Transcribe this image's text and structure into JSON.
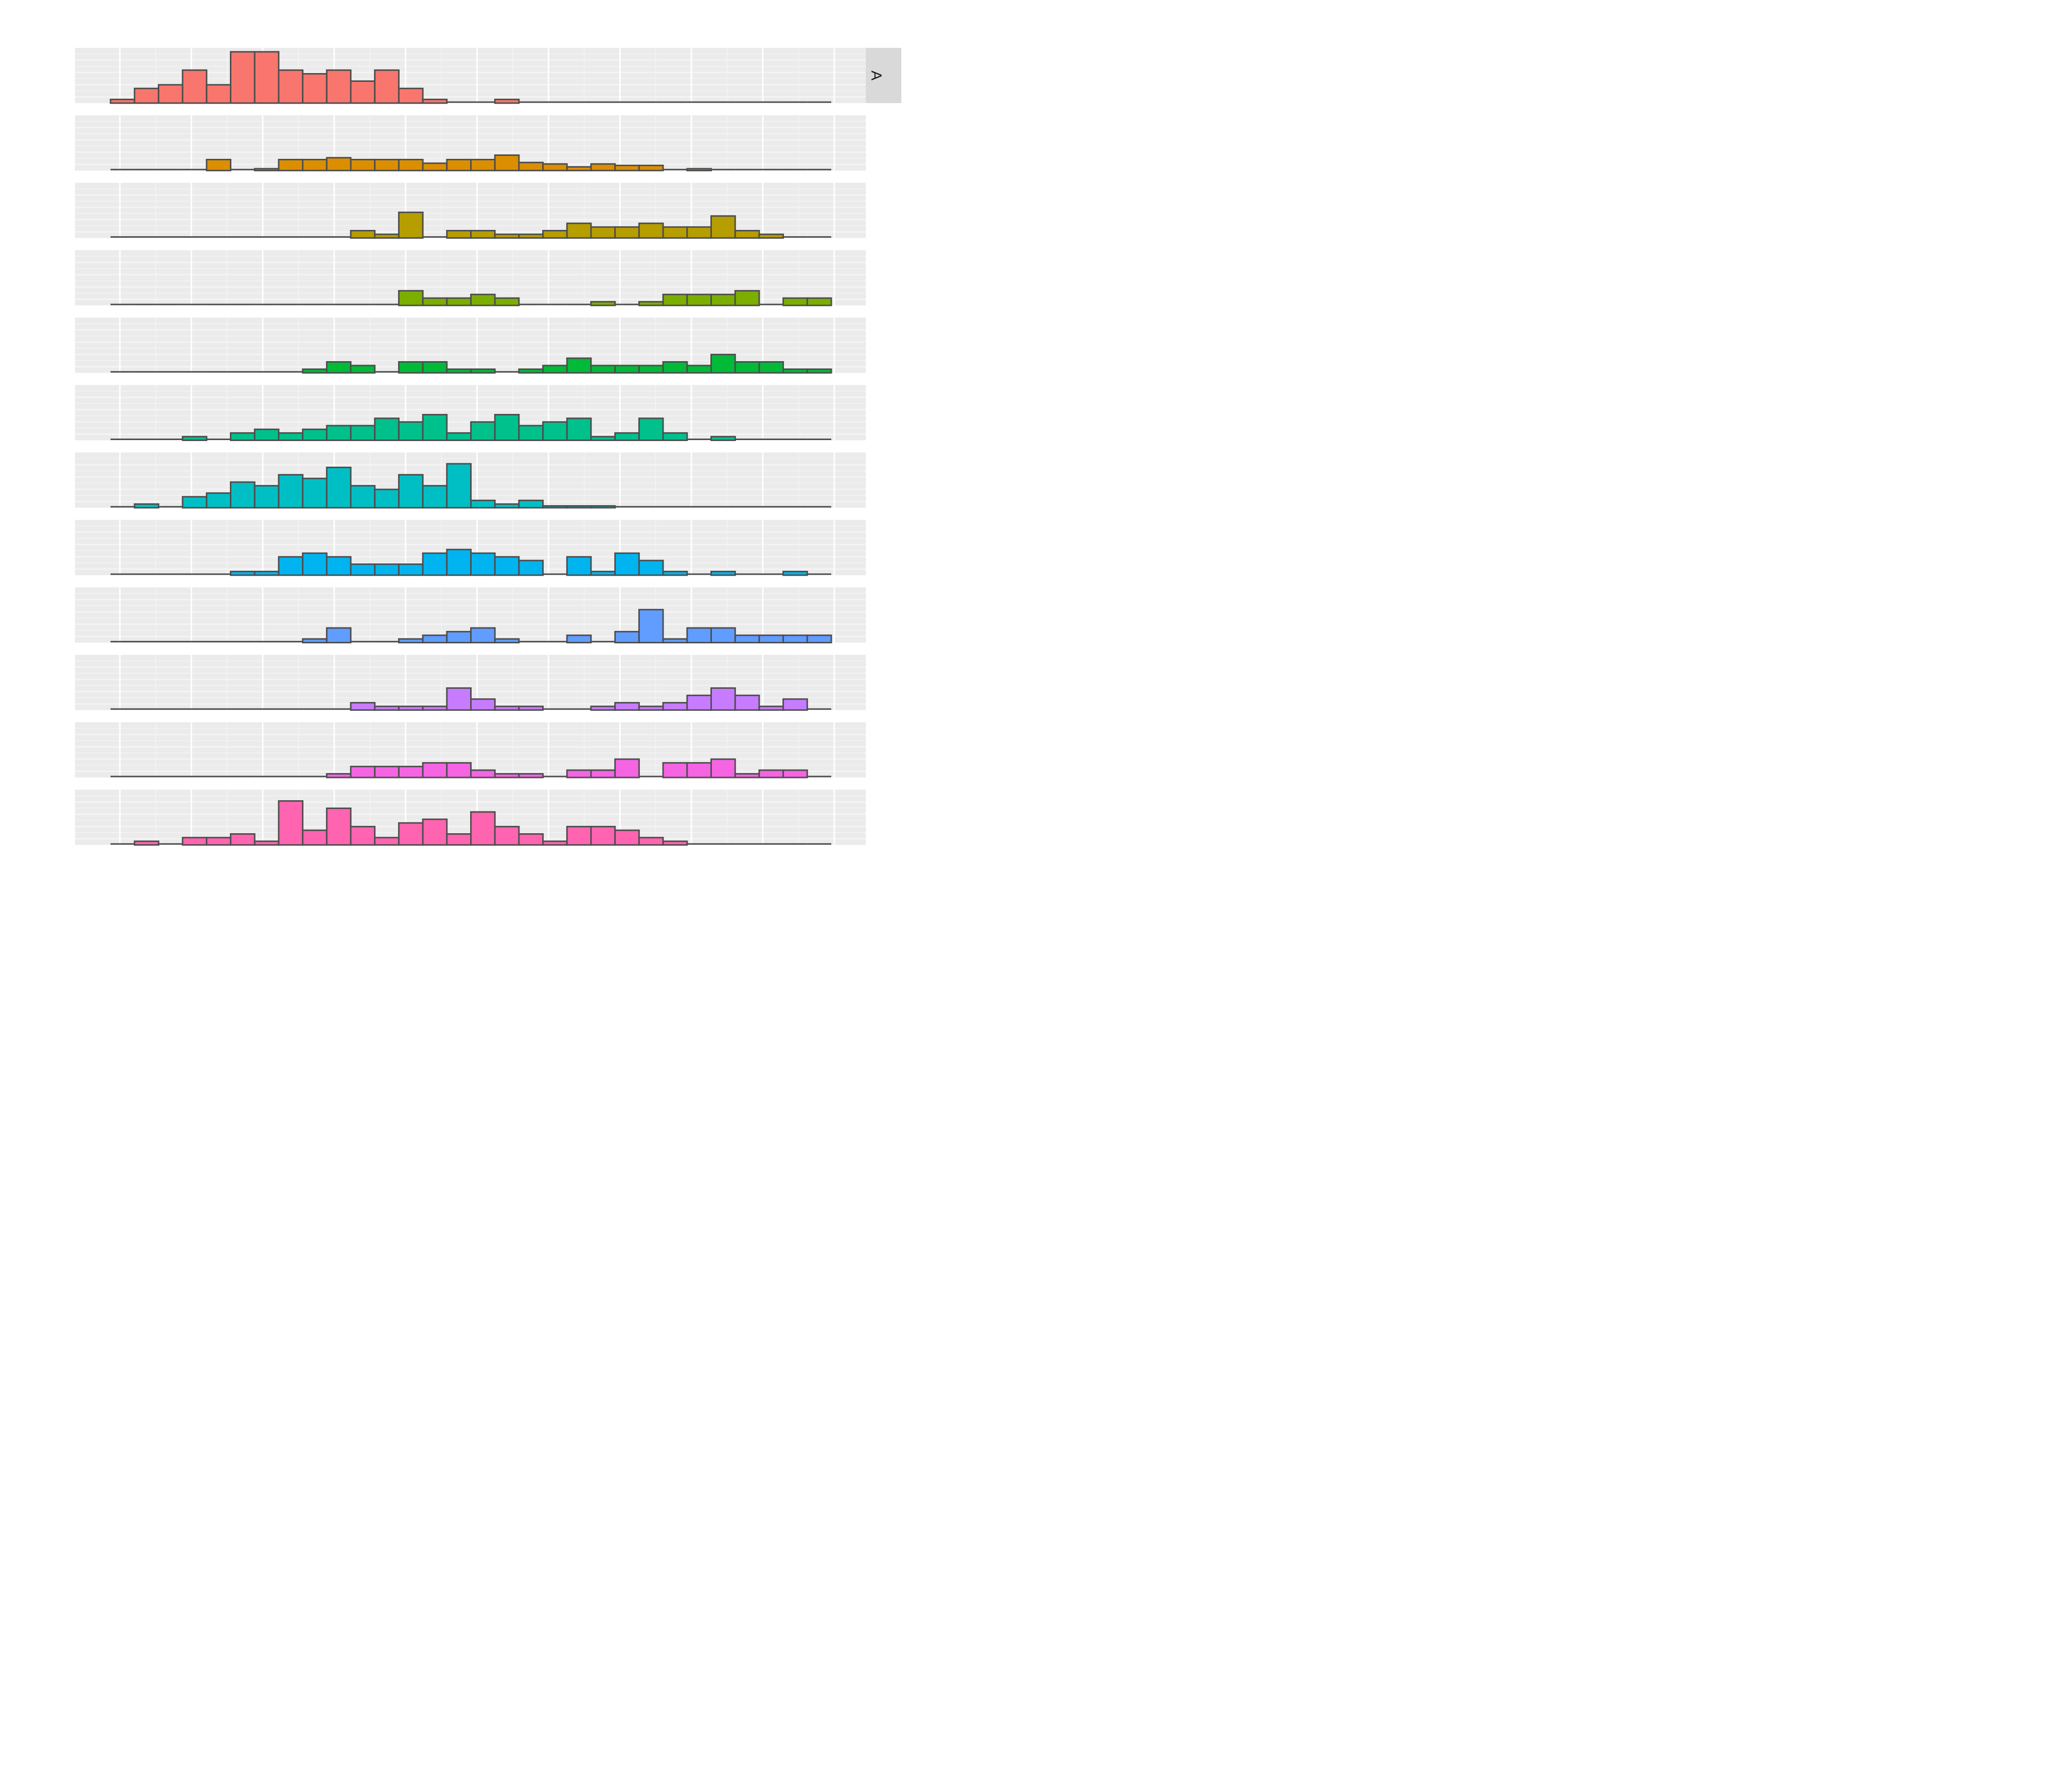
{
  "chart_data": {
    "type": "bar",
    "subtype": "faceted-histogram",
    "title": "",
    "xlabel": "",
    "ylabel": "",
    "x_tick_labels": [],
    "y_tick_labels": [],
    "grid": true,
    "legend": "none",
    "strip_label": "A",
    "bin_count": 30,
    "bar_outline_color": "#4d4d4d",
    "panel_background": "#ebebeb",
    "strip_background": "#d9d9d9",
    "series": [
      {
        "color": "#F8766D",
        "values": [
          1,
          4,
          5,
          9,
          5,
          14,
          14,
          9,
          8,
          9,
          6,
          9,
          4,
          1,
          0,
          0,
          1,
          0,
          0,
          0,
          0,
          0,
          0,
          0,
          0,
          0,
          0,
          0,
          0,
          0
        ]
      },
      {
        "color": "#DB8E00",
        "values": [
          0,
          0,
          0,
          0,
          3,
          0,
          0.5,
          3,
          3,
          3.5,
          3,
          3,
          3,
          2,
          3,
          3,
          4.2,
          2.2,
          1.8,
          1,
          1.8,
          1.4,
          1.4,
          0,
          0.5,
          0,
          0,
          0,
          0,
          0
        ]
      },
      {
        "color": "#B69D00",
        "values": [
          0,
          0,
          0,
          0,
          0,
          0,
          0,
          0,
          0,
          0,
          2,
          1,
          7,
          0,
          2,
          2,
          1,
          1,
          2,
          4,
          3,
          3,
          4,
          3,
          3,
          6,
          2,
          1,
          0,
          0
        ]
      },
      {
        "color": "#7CAE00",
        "values": [
          0,
          0,
          0,
          0,
          0,
          0,
          0,
          0,
          0,
          0,
          0,
          0,
          4,
          2,
          2,
          3,
          2,
          0,
          0,
          0,
          1,
          0,
          1,
          3,
          3,
          3,
          4,
          0,
          2,
          2
        ]
      },
      {
        "color": "#00BA38",
        "values": [
          0,
          0,
          0,
          0,
          0,
          0,
          0,
          0,
          1,
          3,
          2,
          0,
          3,
          3,
          1,
          1,
          0,
          1,
          2,
          4,
          2,
          2,
          2,
          3,
          2,
          5,
          3,
          3,
          1,
          1
        ]
      },
      {
        "color": "#00C08B",
        "values": [
          0,
          0,
          0,
          1,
          0,
          2,
          3,
          2,
          3,
          4,
          4,
          6,
          5,
          7,
          2,
          5,
          7,
          4,
          5,
          6,
          1,
          2,
          6,
          2,
          0,
          1,
          0,
          0,
          0,
          0
        ]
      },
      {
        "color": "#00BFC4",
        "values": [
          0,
          1,
          0,
          3,
          4,
          7,
          6,
          9,
          8,
          11,
          6,
          5,
          9,
          6,
          12,
          2,
          1,
          2,
          0.5,
          0.5,
          0.5,
          0,
          0,
          0,
          0,
          0,
          0,
          0,
          0,
          0
        ]
      },
      {
        "color": "#00B4F0",
        "values": [
          0,
          0,
          0,
          0,
          0,
          1,
          1,
          5,
          6,
          5,
          3,
          3,
          3,
          6,
          7,
          6,
          5,
          4,
          0,
          5,
          1,
          6,
          4,
          1,
          0,
          1,
          0,
          0,
          1,
          0
        ]
      },
      {
        "color": "#619CFF",
        "values": [
          0,
          0,
          0,
          0,
          0,
          0,
          0,
          0,
          1,
          4,
          0,
          0,
          1,
          2,
          3,
          4,
          1,
          0,
          0,
          2,
          0,
          3,
          9,
          1,
          4,
          4,
          2,
          2,
          2,
          2
        ]
      },
      {
        "color": "#C77CFF",
        "values": [
          0,
          0,
          0,
          0,
          0,
          0,
          0,
          0,
          0,
          0,
          2,
          1,
          1,
          1,
          6,
          3,
          1,
          1,
          0,
          0,
          1,
          2,
          1,
          2,
          4,
          6,
          4,
          1,
          3,
          0
        ]
      },
      {
        "color": "#F564E3",
        "values": [
          0,
          0,
          0,
          0,
          0,
          0,
          0,
          0,
          0,
          1,
          3,
          3,
          3,
          4,
          4,
          2,
          1,
          1,
          0,
          2,
          2,
          5,
          0,
          4,
          4,
          5,
          1,
          2,
          2,
          0
        ]
      },
      {
        "color": "#FF64B0",
        "values": [
          0,
          1,
          0,
          2,
          2,
          3,
          1,
          12,
          4,
          10,
          5,
          2,
          6,
          7,
          3,
          9,
          5,
          3,
          1,
          5,
          5,
          4,
          2,
          1,
          0,
          0,
          0,
          0,
          0,
          0
        ]
      }
    ]
  }
}
